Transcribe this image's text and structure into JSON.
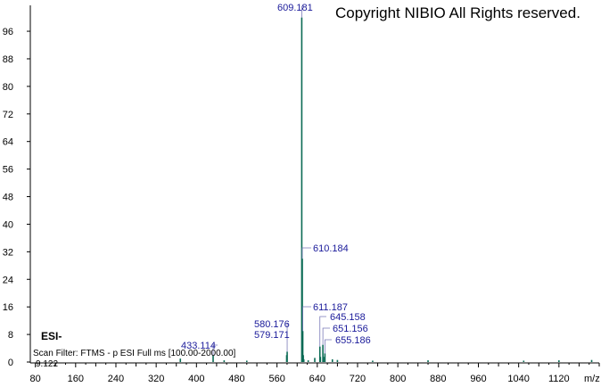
{
  "copyright": "Copyright NIBIO All Rights reserved.",
  "ion_mode": "ESI-",
  "scan_filter": "Scan Filter: FTMS - p ESI Full ms [100.00-2000.00]",
  "tic_value": "9.122",
  "colors": {
    "spectrum": "#0b6b55",
    "peak_label": "#1a1a9a",
    "axis": "#000000"
  },
  "chart_data": {
    "type": "bar",
    "title": "",
    "xlabel": "m/z",
    "ylabel": "",
    "xlim": [
      70,
      1200
    ],
    "ylim": [
      0,
      103
    ],
    "grid": false,
    "x_ticks": [
      80,
      160,
      240,
      320,
      400,
      480,
      560,
      640,
      720,
      800,
      880,
      960,
      1040,
      1120
    ],
    "y_ticks": [
      0,
      8,
      16,
      24,
      32,
      40,
      48,
      56,
      64,
      72,
      80,
      88,
      96
    ],
    "peaks": [
      {
        "mz": 609.181,
        "intensity": 100,
        "label": "609.181"
      },
      {
        "mz": 610.184,
        "intensity": 30,
        "label": "610.184"
      },
      {
        "mz": 611.187,
        "intensity": 9,
        "label": "611.187"
      },
      {
        "mz": 580.176,
        "intensity": 3,
        "label": "580.176"
      },
      {
        "mz": 579.171,
        "intensity": 2,
        "label": "579.171"
      },
      {
        "mz": 645.158,
        "intensity": 4.5,
        "label": "645.158"
      },
      {
        "mz": 651.156,
        "intensity": 5,
        "label": "651.156"
      },
      {
        "mz": 655.186,
        "intensity": 2.5,
        "label": "655.186"
      },
      {
        "mz": 433.114,
        "intensity": 2,
        "label": "433.114"
      },
      {
        "mz": 368,
        "intensity": 1.0,
        "label": ""
      },
      {
        "mz": 455,
        "intensity": 0.5,
        "label": ""
      },
      {
        "mz": 500,
        "intensity": 0.4,
        "label": ""
      },
      {
        "mz": 612.2,
        "intensity": 2,
        "label": ""
      },
      {
        "mz": 613.2,
        "intensity": 0.8,
        "label": ""
      },
      {
        "mz": 622,
        "intensity": 0.5,
        "label": ""
      },
      {
        "mz": 635,
        "intensity": 1.2,
        "label": ""
      },
      {
        "mz": 646.2,
        "intensity": 1.5,
        "label": ""
      },
      {
        "mz": 652.2,
        "intensity": 1.5,
        "label": ""
      },
      {
        "mz": 670,
        "intensity": 0.8,
        "label": ""
      },
      {
        "mz": 680,
        "intensity": 0.6,
        "label": ""
      },
      {
        "mz": 750,
        "intensity": 0.4,
        "label": ""
      },
      {
        "mz": 860,
        "intensity": 0.5,
        "label": ""
      },
      {
        "mz": 1050,
        "intensity": 0.4,
        "label": ""
      },
      {
        "mz": 1120,
        "intensity": 0.5,
        "label": ""
      },
      {
        "mz": 1185,
        "intensity": 0.6,
        "label": ""
      }
    ]
  }
}
